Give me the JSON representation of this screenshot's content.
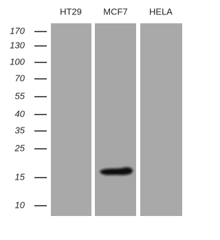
{
  "lanes": [
    "HT29",
    "MCF7",
    "HELA"
  ],
  "markers": [
    "170",
    "130",
    "100",
    "70",
    "55",
    "40",
    "35",
    "25",
    "15",
    "10"
  ]
}
